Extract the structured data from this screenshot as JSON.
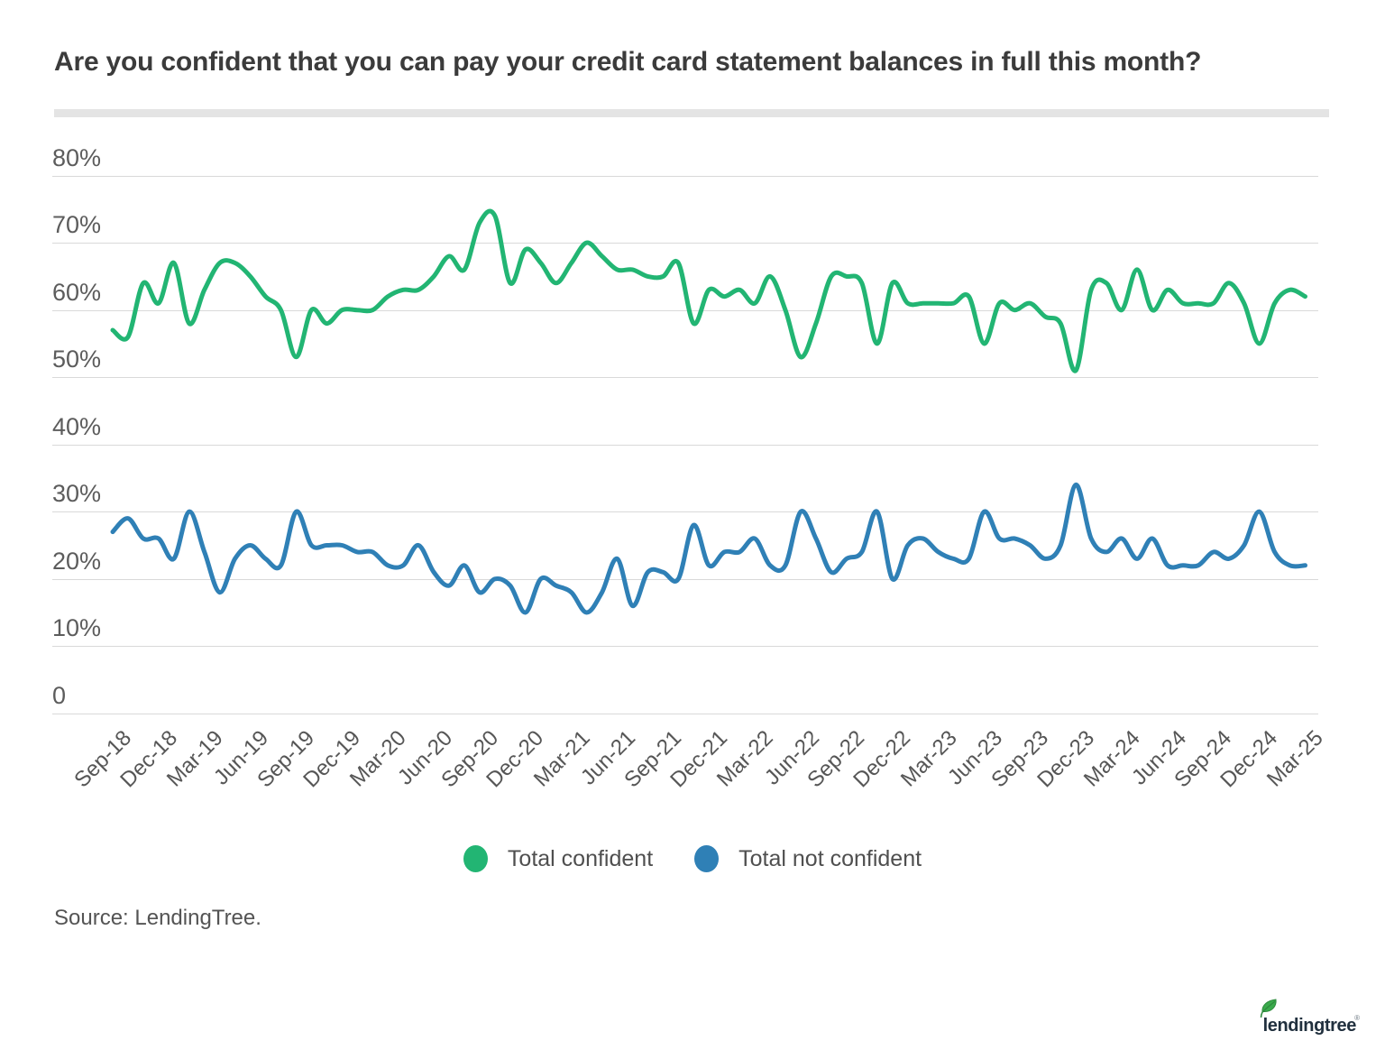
{
  "header": {
    "title": "Are you confident that you can pay your credit card statement balances in full this month?"
  },
  "axes": {
    "y_ticks": [
      {
        "label": "80%",
        "value": 80
      },
      {
        "label": "70%",
        "value": 70
      },
      {
        "label": "60%",
        "value": 60
      },
      {
        "label": "50%",
        "value": 50
      },
      {
        "label": "40%",
        "value": 40
      },
      {
        "label": "30%",
        "value": 30
      },
      {
        "label": "20%",
        "value": 20
      },
      {
        "label": "10%",
        "value": 10
      },
      {
        "label": "0",
        "value": 0
      }
    ],
    "x_tick_labels": [
      "Sep-18",
      "Dec-18",
      "Mar-19",
      "Jun-19",
      "Sep-19",
      "Dec-19",
      "Mar-20",
      "Jun-20",
      "Sep-20",
      "Dec-20",
      "Mar-21",
      "Jun-21",
      "Sep-21",
      "Dec-21",
      "Mar-22",
      "Jun-22",
      "Sep-22",
      "Dec-22",
      "Mar-23",
      "Jun-23",
      "Sep-23",
      "Dec-23",
      "Mar-24",
      "Jun-24",
      "Sep-24",
      "Dec-24",
      "Mar-25"
    ]
  },
  "chart_data": {
    "type": "line",
    "title": "Are you confident that you can pay your credit card statement balances in full this month?",
    "xlabel": "",
    "ylabel": "",
    "ylim": [
      0,
      80
    ],
    "grid": true,
    "legend_position": "bottom",
    "categories": [
      "Sep-18",
      "Oct-18",
      "Nov-18",
      "Dec-18",
      "Jan-19",
      "Feb-19",
      "Mar-19",
      "Apr-19",
      "May-19",
      "Jun-19",
      "Jul-19",
      "Aug-19",
      "Sep-19",
      "Oct-19",
      "Nov-19",
      "Dec-19",
      "Jan-20",
      "Feb-20",
      "Mar-20",
      "Apr-20",
      "May-20",
      "Jun-20",
      "Jul-20",
      "Aug-20",
      "Sep-20",
      "Oct-20",
      "Nov-20",
      "Dec-20",
      "Jan-21",
      "Feb-21",
      "Mar-21",
      "Apr-21",
      "May-21",
      "Jun-21",
      "Jul-21",
      "Aug-21",
      "Sep-21",
      "Oct-21",
      "Nov-21",
      "Dec-21",
      "Jan-22",
      "Feb-22",
      "Mar-22",
      "Apr-22",
      "May-22",
      "Jun-22",
      "Jul-22",
      "Aug-22",
      "Sep-22",
      "Oct-22",
      "Nov-22",
      "Dec-22",
      "Jan-23",
      "Feb-23",
      "Mar-23",
      "Apr-23",
      "May-23",
      "Jun-23",
      "Jul-23",
      "Aug-23",
      "Sep-23",
      "Oct-23",
      "Nov-23",
      "Dec-23",
      "Jan-24",
      "Feb-24",
      "Mar-24",
      "Apr-24",
      "May-24",
      "Jun-24",
      "Jul-24",
      "Aug-24",
      "Sep-24",
      "Oct-24",
      "Nov-24",
      "Dec-24",
      "Jan-25",
      "Feb-25",
      "Mar-25"
    ],
    "series": [
      {
        "name": "Total confident",
        "color": "#22b573",
        "values": [
          57,
          56,
          64,
          61,
          67,
          58,
          63,
          67,
          67,
          65,
          62,
          60,
          53,
          60,
          58,
          60,
          60,
          60,
          62,
          63,
          63,
          65,
          68,
          66,
          73,
          74,
          64,
          69,
          67,
          64,
          67,
          70,
          68,
          66,
          66,
          65,
          65,
          67,
          58,
          63,
          62,
          63,
          61,
          65,
          60,
          53,
          58,
          65,
          65,
          64,
          55,
          64,
          61,
          61,
          61,
          61,
          62,
          55,
          61,
          60,
          61,
          59,
          58,
          51,
          63,
          64,
          60,
          66,
          60,
          63,
          61,
          61,
          61,
          64,
          61,
          55,
          61,
          63,
          62
        ]
      },
      {
        "name": "Total not confident",
        "color": "#2f80b6",
        "values": [
          27,
          29,
          26,
          26,
          23,
          30,
          24,
          18,
          23,
          25,
          23,
          22,
          30,
          25,
          25,
          25,
          24,
          24,
          22,
          22,
          25,
          21,
          19,
          22,
          18,
          20,
          19,
          15,
          20,
          19,
          18,
          15,
          18,
          23,
          16,
          21,
          21,
          20,
          28,
          22,
          24,
          24,
          26,
          22,
          22,
          30,
          26,
          21,
          23,
          24,
          30,
          20,
          25,
          26,
          24,
          23,
          23,
          30,
          26,
          26,
          25,
          23,
          25,
          34,
          26,
          24,
          26,
          23,
          26,
          22,
          22,
          22,
          24,
          23,
          25,
          30,
          24,
          22,
          22
        ]
      }
    ]
  },
  "legend": {
    "items": [
      {
        "label": "Total confident",
        "color": "#22b573"
      },
      {
        "label": "Total not confident",
        "color": "#2f80b6"
      }
    ]
  },
  "source": {
    "text": "Source: LendingTree."
  },
  "logo": {
    "text": "lendingtree",
    "leaf_color": "#3aaa4c",
    "text_color": "#21303e"
  }
}
